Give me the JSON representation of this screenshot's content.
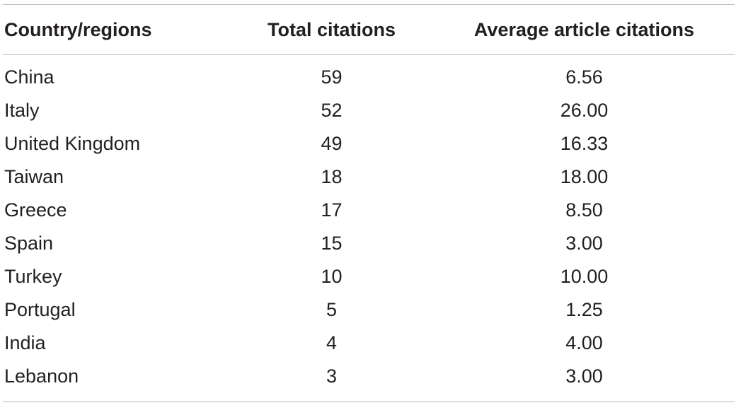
{
  "table": {
    "columns": [
      "Country/regions",
      "Total citations",
      "Average article citations"
    ],
    "rows": [
      [
        "China",
        "59",
        "6.56"
      ],
      [
        "Italy",
        "52",
        "26.00"
      ],
      [
        "United Kingdom",
        "49",
        "16.33"
      ],
      [
        "Taiwan",
        "18",
        "18.00"
      ],
      [
        "Greece",
        "17",
        "8.50"
      ],
      [
        "Spain",
        "15",
        "3.00"
      ],
      [
        "Turkey",
        "10",
        "10.00"
      ],
      [
        "Portugal",
        "5",
        "1.25"
      ],
      [
        "India",
        "4",
        "4.00"
      ],
      [
        "Lebanon",
        "3",
        "3.00"
      ]
    ]
  }
}
